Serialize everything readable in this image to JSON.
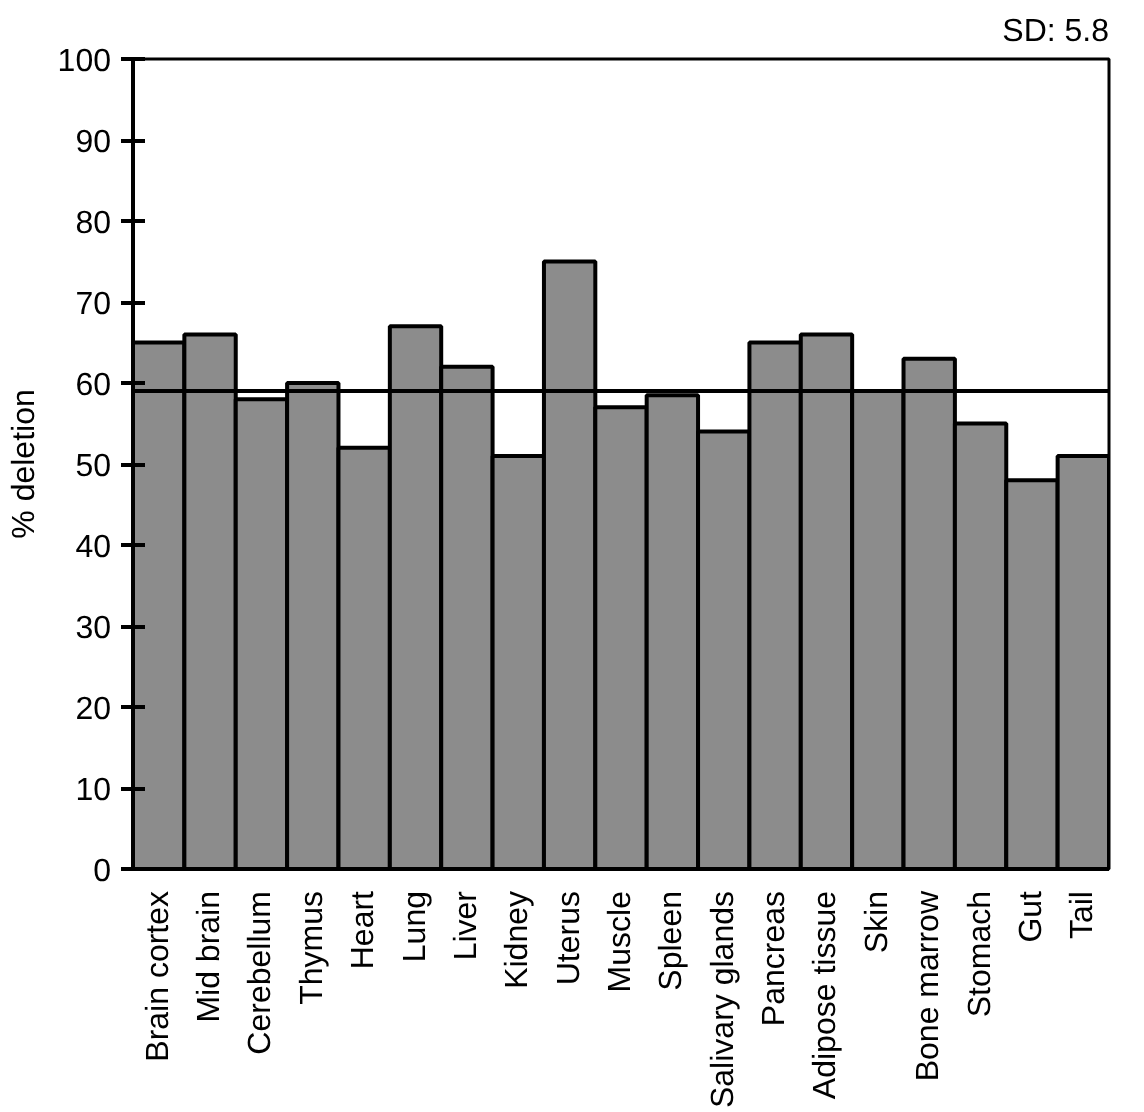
{
  "chart_data": {
    "type": "bar",
    "ylabel": "% deletion",
    "annotations": [
      "SD: 5.8"
    ],
    "categories": [
      "Brain cortex",
      "Mid brain",
      "Cerebellum",
      "Thymus",
      "Heart",
      "Lung",
      "Liver",
      "Kidney",
      "Uterus",
      "Muscle",
      "Spleen",
      "Salivary glands",
      "Pancreas",
      "Adipose tissue",
      "Skin",
      "Bone marrow",
      "Stomach",
      "Gut",
      "Tail"
    ],
    "values": [
      65,
      66,
      58,
      60,
      52,
      67,
      62,
      51,
      75,
      57,
      58.5,
      54,
      65,
      66,
      59,
      63,
      55,
      48,
      51
    ],
    "color": "#8c8c8c",
    "ylim": [
      0,
      100
    ],
    "yticks": [
      0,
      10,
      20,
      30,
      40,
      50,
      60,
      70,
      80,
      90,
      100
    ],
    "grid": false,
    "ref_lines": [
      {
        "axis": "y",
        "value": 59,
        "color": "#000000",
        "line_style": "solid"
      }
    ]
  }
}
